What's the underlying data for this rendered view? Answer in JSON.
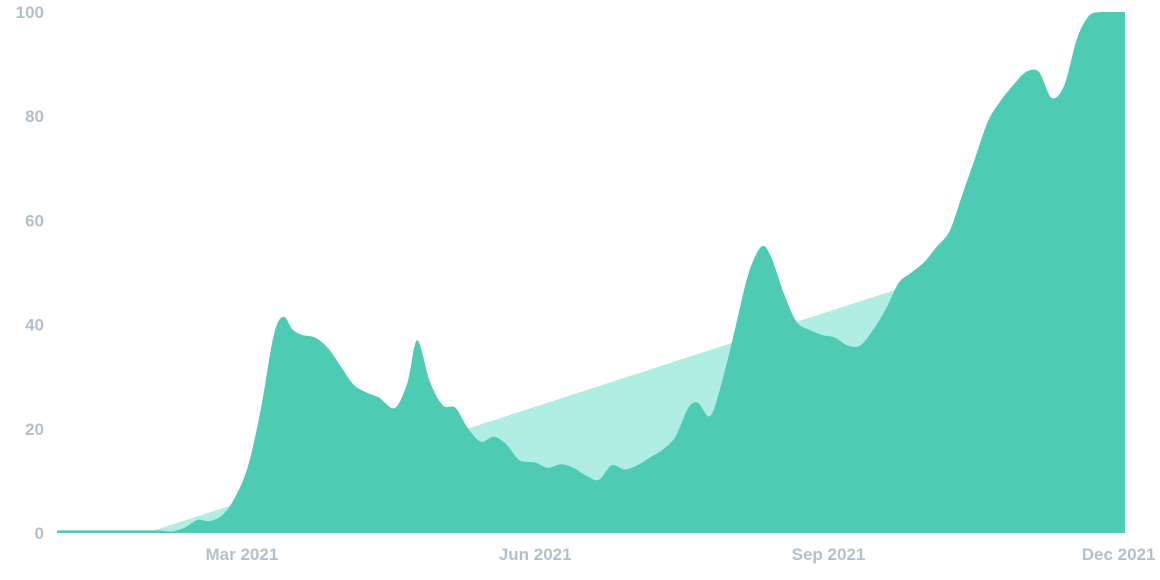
{
  "chart_data": {
    "type": "area",
    "title": "",
    "xlabel": "",
    "ylabel": "",
    "ylim": [
      0,
      100
    ],
    "y_ticks": [
      0,
      20,
      40,
      60,
      80,
      100
    ],
    "y_tick_labels": [
      "0",
      "20",
      "40",
      "60",
      "80",
      "100"
    ],
    "x_range": [
      "2021-01-02",
      "2021-12-03"
    ],
    "x_ticks": [
      {
        "date": "2021-03-01",
        "label": "Mar 2021"
      },
      {
        "date": "2021-06-01",
        "label": "Jun 2021"
      },
      {
        "date": "2021-09-01",
        "label": "Sep 2021"
      },
      {
        "date": "2021-12-01",
        "label": "Dec 2021"
      }
    ],
    "grid": false,
    "legend": "none",
    "colors": {
      "primary_area": "#4ecbb3",
      "trend_area": "#b0ede3",
      "tick_label": "#b3c1cb"
    },
    "series": [
      {
        "kind": "trend",
        "points": [
          [
            "2021-01-02",
            0
          ],
          [
            "2021-01-30",
            0
          ],
          [
            "2021-11-18",
            58
          ]
        ]
      },
      {
        "kind": "primary",
        "points": [
          [
            "2021-01-02",
            0.5
          ],
          [
            "2021-01-30",
            0.5
          ],
          [
            "2021-02-03",
            0.5
          ],
          [
            "2021-02-07",
            0.3
          ],
          [
            "2021-02-11",
            1.0
          ],
          [
            "2021-02-15",
            2.5
          ],
          [
            "2021-02-19",
            2.3
          ],
          [
            "2021-02-23",
            3.5
          ],
          [
            "2021-02-27",
            7.0
          ],
          [
            "2021-03-03",
            13.0
          ],
          [
            "2021-03-07",
            24.0
          ],
          [
            "2021-03-11",
            38.0
          ],
          [
            "2021-03-14",
            41.5
          ],
          [
            "2021-03-17",
            39.0
          ],
          [
            "2021-03-20",
            38.0
          ],
          [
            "2021-03-24",
            37.5
          ],
          [
            "2021-03-28",
            35.5
          ],
          [
            "2021-04-01",
            32.0
          ],
          [
            "2021-04-05",
            28.5
          ],
          [
            "2021-04-09",
            27.0
          ],
          [
            "2021-04-13",
            26.0
          ],
          [
            "2021-04-18",
            24.0
          ],
          [
            "2021-04-22",
            29.0
          ],
          [
            "2021-04-25",
            37.0
          ],
          [
            "2021-04-29",
            29.0
          ],
          [
            "2021-05-03",
            24.5
          ],
          [
            "2021-05-07",
            24.0
          ],
          [
            "2021-05-11",
            20.0
          ],
          [
            "2021-05-15",
            17.5
          ],
          [
            "2021-05-19",
            18.5
          ],
          [
            "2021-05-23",
            17.0
          ],
          [
            "2021-05-27",
            14.0
          ],
          [
            "2021-06-01",
            13.5
          ],
          [
            "2021-06-05",
            12.5
          ],
          [
            "2021-06-09",
            13.2
          ],
          [
            "2021-06-13",
            12.5
          ],
          [
            "2021-06-17",
            11.0
          ],
          [
            "2021-06-21",
            10.2
          ],
          [
            "2021-06-25",
            13.0
          ],
          [
            "2021-06-29",
            12.2
          ],
          [
            "2021-07-03",
            13.0
          ],
          [
            "2021-07-07",
            14.5
          ],
          [
            "2021-07-11",
            16.0
          ],
          [
            "2021-07-15",
            18.5
          ],
          [
            "2021-07-19",
            24.0
          ],
          [
            "2021-07-22",
            25.0
          ],
          [
            "2021-07-26",
            22.5
          ],
          [
            "2021-07-30",
            30.0
          ],
          [
            "2021-08-03",
            40.0
          ],
          [
            "2021-08-07",
            50.0
          ],
          [
            "2021-08-11",
            55.0
          ],
          [
            "2021-08-14",
            53.0
          ],
          [
            "2021-08-18",
            46.0
          ],
          [
            "2021-08-22",
            40.5
          ],
          [
            "2021-08-26",
            39.0
          ],
          [
            "2021-08-30",
            38.0
          ],
          [
            "2021-09-03",
            37.5
          ],
          [
            "2021-09-07",
            36.0
          ],
          [
            "2021-09-11",
            36.0
          ],
          [
            "2021-09-15",
            39.0
          ],
          [
            "2021-09-19",
            43.0
          ],
          [
            "2021-09-23",
            48.0
          ],
          [
            "2021-09-27",
            50.0
          ],
          [
            "2021-10-01",
            52.0
          ],
          [
            "2021-10-05",
            55.0
          ],
          [
            "2021-10-09",
            58.0
          ],
          [
            "2021-10-13",
            65.0
          ],
          [
            "2021-10-17",
            72.0
          ],
          [
            "2021-10-21",
            79.0
          ],
          [
            "2021-10-25",
            83.0
          ],
          [
            "2021-10-29",
            86.0
          ],
          [
            "2021-11-02",
            88.5
          ],
          [
            "2021-11-06",
            88.5
          ],
          [
            "2021-11-10",
            83.5
          ],
          [
            "2021-11-14",
            86.0
          ],
          [
            "2021-11-18",
            95.0
          ],
          [
            "2021-11-22",
            99.5
          ],
          [
            "2021-11-26",
            100.0
          ],
          [
            "2021-12-03",
            100.0
          ]
        ]
      }
    ]
  }
}
